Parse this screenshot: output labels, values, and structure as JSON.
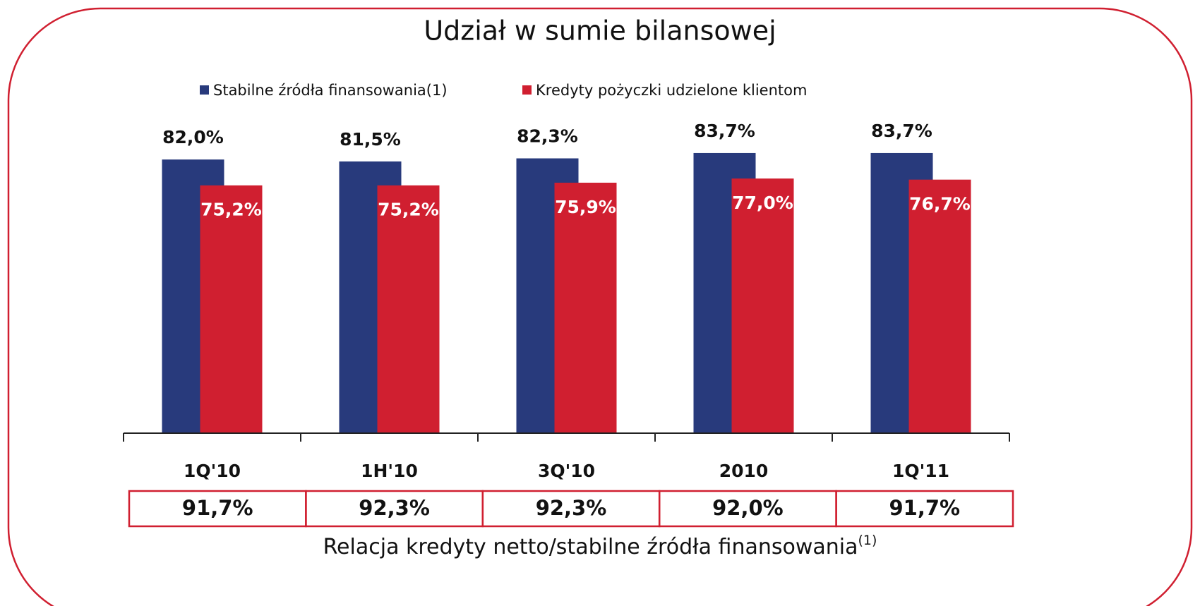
{
  "chart_data": {
    "type": "bar",
    "title": "Udział w sumie bilansowej",
    "categories": [
      "1Q'10",
      "1H'10",
      "3Q'10",
      "2010",
      "1Q'11"
    ],
    "series": [
      {
        "name": "Stabilne źródła finansowania(1)",
        "color": "#283a7c",
        "values": [
          82.0,
          81.5,
          82.3,
          83.7,
          83.7
        ],
        "value_labels": [
          "82,0%",
          "81,5%",
          "82,3%",
          "83,7%",
          "83,7%"
        ]
      },
      {
        "name": "Kredyty pożyczki udzielone klientom",
        "color": "#d01f30",
        "values": [
          75.2,
          75.2,
          75.9,
          77.0,
          76.7
        ],
        "value_labels": [
          "75,2%",
          "75,2%",
          "75,9%",
          "77,0%",
          "76,7%"
        ]
      }
    ],
    "ylim": [
      10,
      90
    ],
    "ratio_row": [
      "91,7%",
      "92,3%",
      "92,3%",
      "92,0%",
      "91,7%"
    ],
    "ratio_caption": "Relacja kredyty netto/stabilne źródła finansowania",
    "ratio_caption_note": "(1)"
  }
}
